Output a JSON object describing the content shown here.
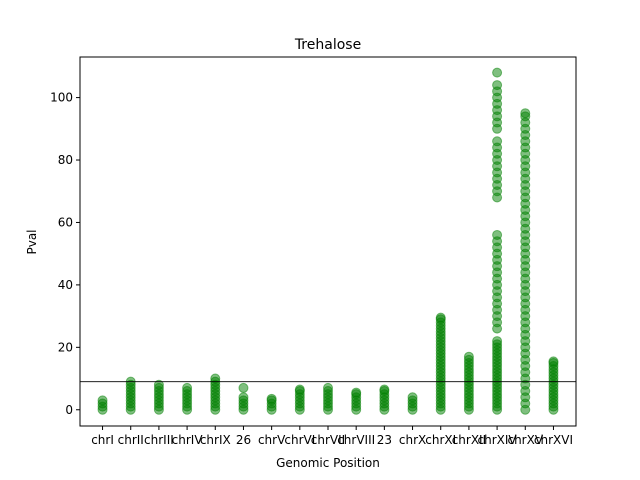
{
  "chart_data": {
    "type": "strip",
    "title": "Trehalose",
    "xlabel": "Genomic Position",
    "ylabel": "Pval",
    "categories": [
      "chrI",
      "chrII",
      "chrIII",
      "chrIV",
      "chrIX",
      "26",
      "chrV",
      "chrVI",
      "chrVII",
      "chrVIII",
      "23",
      "chrX",
      "chrXI",
      "chrXII",
      "chrXIV",
      "chrXV",
      "chrXVI"
    ],
    "points": [
      [
        0,
        1,
        2,
        3
      ],
      [
        0,
        1,
        2,
        3,
        4,
        5,
        6,
        7,
        8,
        9
      ],
      [
        0,
        1,
        2,
        3,
        4,
        5,
        6,
        7,
        8
      ],
      [
        0,
        1,
        2,
        3,
        4,
        5,
        6,
        7
      ],
      [
        0,
        1,
        2,
        3,
        4,
        5,
        6,
        7,
        8,
        9,
        10
      ],
      [
        0,
        1,
        2,
        3,
        4,
        7
      ],
      [
        0,
        1,
        2,
        3,
        3.5
      ],
      [
        0,
        1,
        2,
        3,
        4,
        5,
        6,
        6.5
      ],
      [
        0,
        1,
        2,
        3,
        4,
        5,
        6,
        7
      ],
      [
        0,
        1,
        2,
        3,
        4,
        5,
        5.5
      ],
      [
        0,
        1,
        2,
        3,
        4,
        5,
        6,
        6.5
      ],
      [
        0,
        1,
        2,
        3,
        4
      ],
      [
        0,
        1,
        2,
        3,
        4,
        5,
        6,
        7,
        8,
        9,
        10,
        11,
        12,
        13,
        14,
        15,
        16,
        17,
        18,
        19,
        20,
        21,
        22,
        23,
        24,
        25,
        26,
        27,
        28,
        29,
        29.5
      ],
      [
        0,
        1,
        2,
        3,
        4,
        5,
        6,
        7,
        8,
        9,
        10,
        11,
        12,
        13,
        14,
        15,
        16,
        17
      ],
      [
        0,
        1,
        2,
        3,
        4,
        5,
        6,
        7,
        8,
        9,
        10,
        11,
        12,
        13,
        14,
        15,
        16,
        17,
        18,
        19,
        20,
        21,
        22,
        26,
        28,
        30,
        32,
        34,
        36,
        38,
        40,
        42,
        44,
        46,
        48,
        50,
        52,
        54,
        56,
        68,
        70,
        72,
        74,
        76,
        78,
        80,
        82,
        84,
        86,
        90,
        92,
        94,
        96,
        98,
        100,
        102,
        104,
        108
      ],
      [
        0,
        2,
        4,
        6,
        8,
        10,
        12,
        14,
        16,
        18,
        20,
        22,
        24,
        26,
        28,
        30,
        32,
        34,
        36,
        38,
        40,
        42,
        44,
        46,
        48,
        50,
        52,
        54,
        56,
        58,
        60,
        62,
        64,
        66,
        68,
        70,
        72,
        74,
        76,
        78,
        80,
        82,
        84,
        86,
        88,
        90,
        92,
        94,
        95
      ],
      [
        0,
        1,
        2,
        3,
        4,
        5,
        6,
        7,
        8,
        9,
        10,
        11,
        12,
        13,
        14,
        15,
        15.5
      ]
    ],
    "color": "green",
    "hline": 9,
    "ylim": [
      -5.2,
      113
    ],
    "yticks": [
      0,
      20,
      40,
      60,
      80,
      100
    ]
  }
}
